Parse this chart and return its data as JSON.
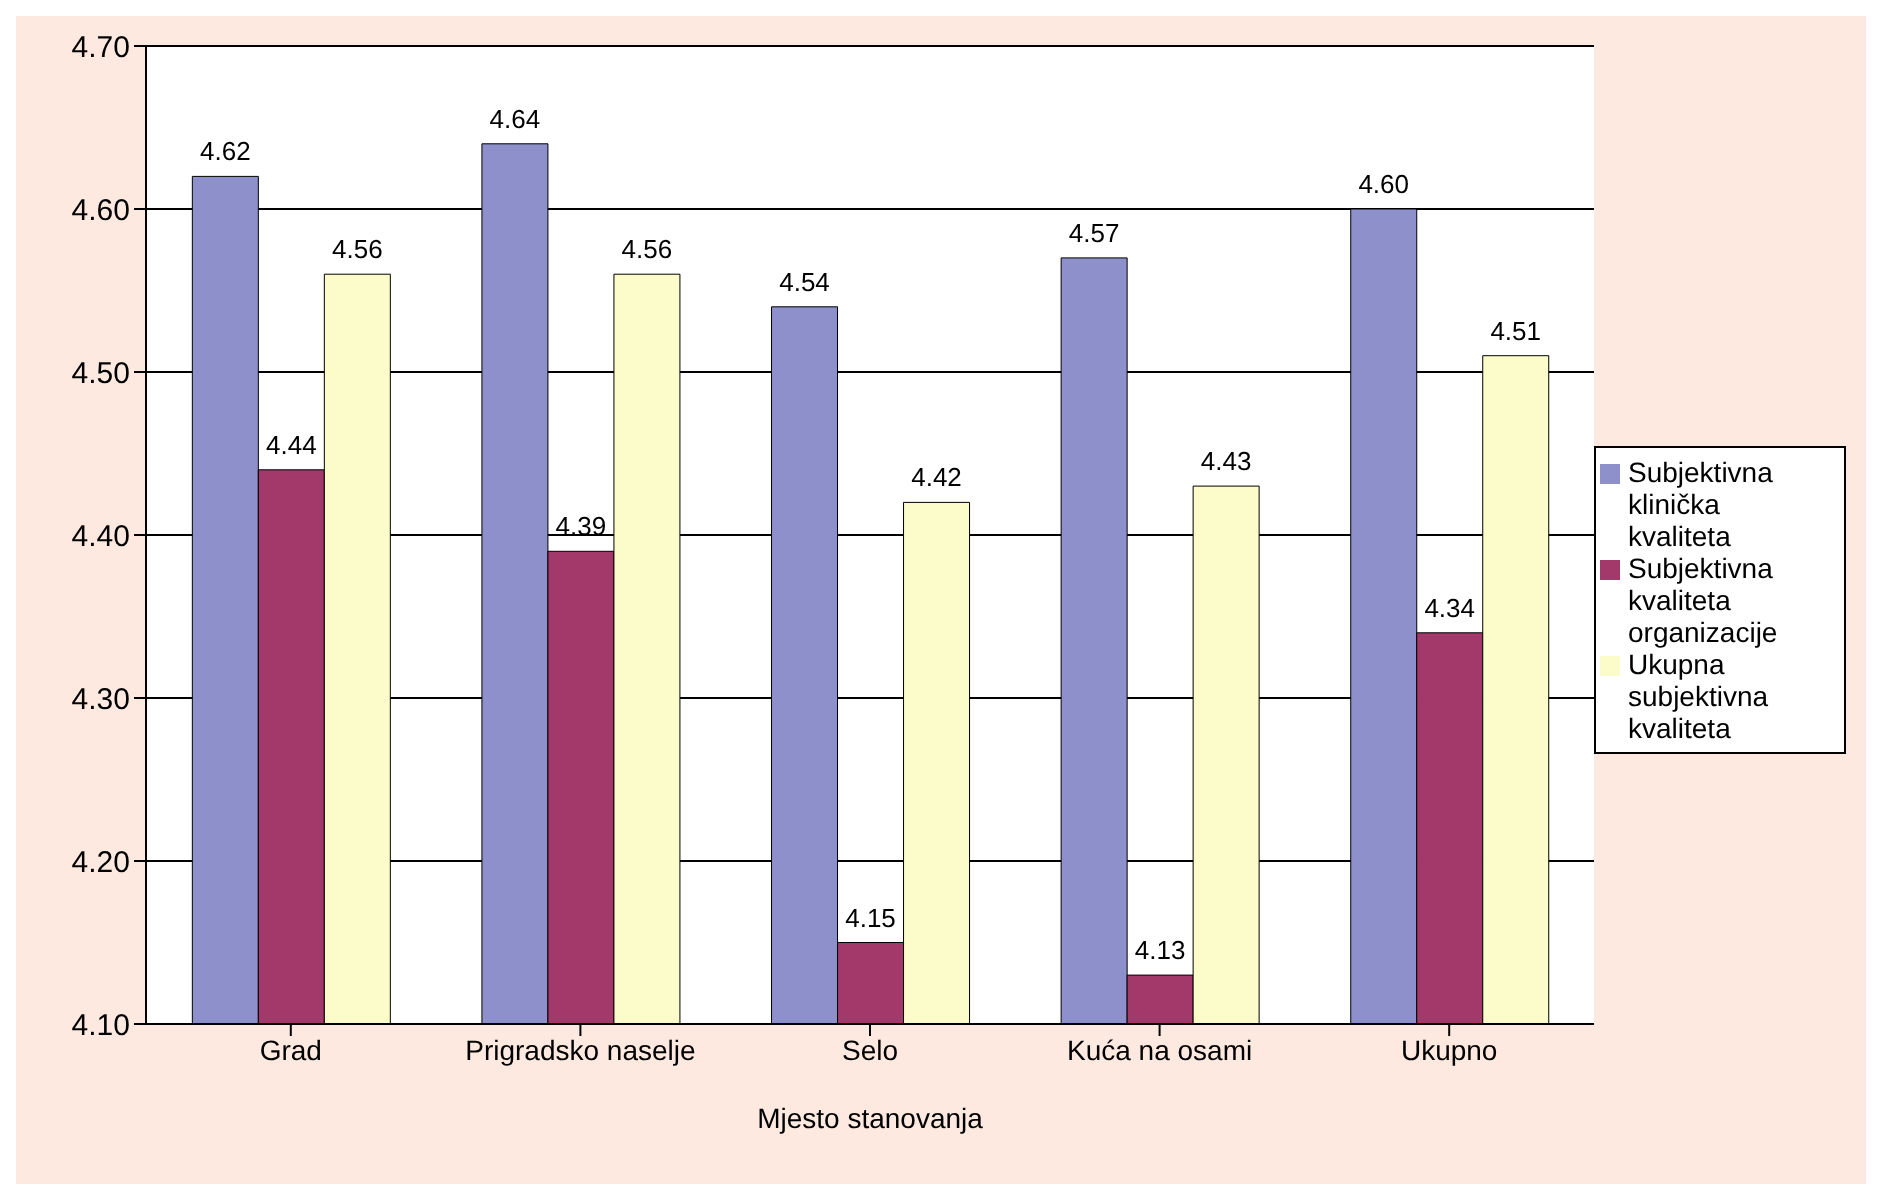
{
  "chart_data": {
    "type": "bar",
    "xlabel": "Mjesto stanovanja",
    "categories": [
      "Grad",
      "Prigradsko naselje",
      "Selo",
      "Kuća na osami",
      "Ukupno"
    ],
    "series": [
      {
        "name": "Subjektivna klinička kvaliteta",
        "color": "#8e90cc",
        "values": [
          4.62,
          4.64,
          4.54,
          4.57,
          4.6
        ],
        "value_labels": [
          "4.62",
          "4.64",
          "4.54",
          "4.57",
          "4.60"
        ]
      },
      {
        "name": "Subjektivna kvaliteta organizacije",
        "color": "#a3396a",
        "values": [
          4.44,
          4.39,
          4.15,
          4.13,
          4.34
        ],
        "value_labels": [
          "4.44",
          "4.39",
          "4.15",
          "4.13",
          "4.34"
        ]
      },
      {
        "name": "Ukupna subjektivna kvaliteta",
        "color": "#fcfcca",
        "values": [
          4.56,
          4.56,
          4.42,
          4.43,
          4.51
        ],
        "value_labels": [
          "4.56",
          "4.56",
          "4.42",
          "4.43",
          "4.51"
        ]
      }
    ],
    "ylim": [
      4.1,
      4.7
    ],
    "yticks": [
      {
        "value": 4.1,
        "label": "4.10"
      },
      {
        "value": 4.2,
        "label": "4.20"
      },
      {
        "value": 4.3,
        "label": "4.30"
      },
      {
        "value": 4.4,
        "label": "4.40"
      },
      {
        "value": 4.5,
        "label": "4.50"
      },
      {
        "value": 4.6,
        "label": "4.60"
      },
      {
        "value": 4.7,
        "label": "4.70"
      }
    ],
    "grid": "y",
    "legend": "right"
  }
}
